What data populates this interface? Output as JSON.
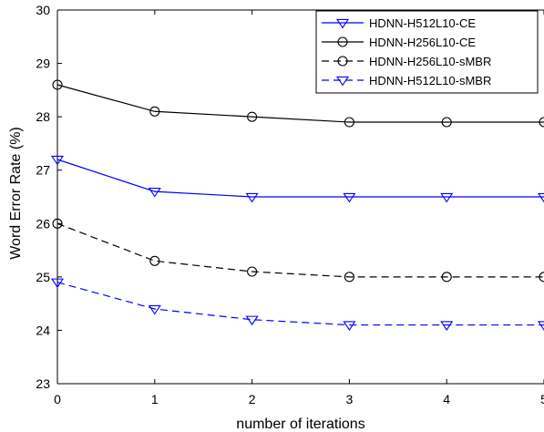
{
  "chart_data": {
    "type": "line",
    "title": "",
    "xlabel": "number of iterations",
    "ylabel": "Word Error Rate (%)",
    "xlim": [
      0,
      5
    ],
    "ylim": [
      23,
      30
    ],
    "x_ticks": [
      "0",
      "1",
      "2",
      "3",
      "4",
      "5"
    ],
    "y_ticks": [
      "23",
      "24",
      "25",
      "26",
      "27",
      "28",
      "29",
      "30"
    ],
    "grid": false,
    "legend_position": "top-right",
    "x": [
      0,
      1,
      2,
      3,
      4,
      5
    ],
    "series": [
      {
        "name": "HDNN-H512L10-CE",
        "values": [
          27.2,
          26.6,
          26.5,
          26.5,
          26.5,
          26.5
        ],
        "color": "#0000ff",
        "line_style": "solid",
        "marker": "triangle-down"
      },
      {
        "name": "HDNN-H256L10-CE",
        "values": [
          28.6,
          28.1,
          28.0,
          27.9,
          27.9,
          27.9
        ],
        "color": "#000000",
        "line_style": "solid",
        "marker": "circle"
      },
      {
        "name": "HDNN-H256L10-sMBR",
        "values": [
          26.0,
          25.3,
          25.1,
          25.0,
          25.0,
          25.0
        ],
        "color": "#000000",
        "line_style": "dashed",
        "marker": "circle"
      },
      {
        "name": "HDNN-H512L10-sMBR",
        "values": [
          24.9,
          24.4,
          24.2,
          24.1,
          24.1,
          24.1
        ],
        "color": "#0000ff",
        "line_style": "dashed",
        "marker": "triangle-down"
      }
    ]
  }
}
